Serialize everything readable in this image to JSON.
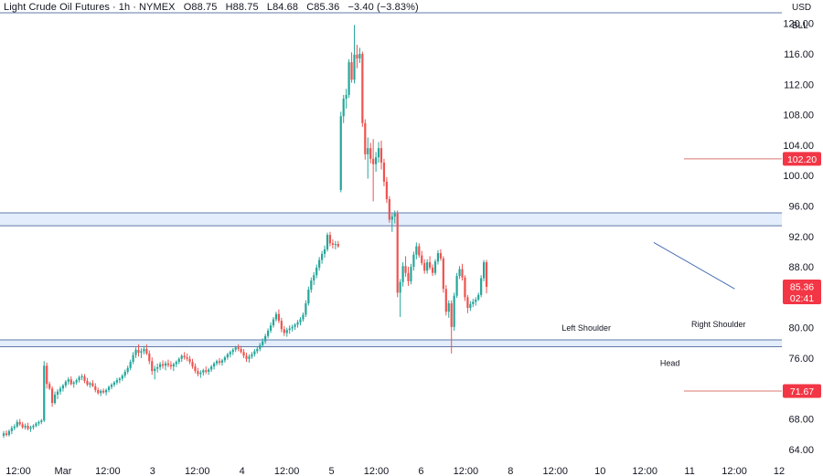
{
  "header": {
    "symbol_name": "Light Crude Oil Futures",
    "interval": "1h",
    "exchange": "NYMEX",
    "open": "O88.75",
    "high": "H88.75",
    "low": "L84.68",
    "close": "C85.36",
    "change": "−3.40 (−3.83%)"
  },
  "scale_units": {
    "currency": "USD",
    "unit": "BLL"
  },
  "colors": {
    "up": "#26a69a",
    "down": "#ef5350",
    "zone_fill": "#e3edfb",
    "zone_line": "#5f7aa8",
    "level_line": "#d9776f",
    "tag_red": "#f23645",
    "trend_line": "#4a6fb3"
  },
  "chart_data": {
    "type": "candlestick",
    "y_axis": {
      "range": [
        62.3,
        121.4
      ],
      "tick_labels": [
        "120.00",
        "116.00",
        "112.00",
        "108.00",
        "104.00",
        "100.00",
        "96.00",
        "92.00",
        "88.00",
        "84.00",
        "80.00",
        "76.00",
        "72.00",
        "68.00",
        "64.00"
      ],
      "tick_values": [
        120,
        116,
        112,
        108,
        104,
        100,
        96,
        92,
        88,
        84,
        80,
        76,
        72,
        68,
        64
      ]
    },
    "x_axis": {
      "tick_labels": [
        "12:00",
        "Mar",
        "12:00",
        "3",
        "12:00",
        "4",
        "12:00",
        "5",
        "12:00",
        "6",
        "12:00",
        "8",
        "12:00",
        "10",
        "12:00",
        "11",
        "12:00",
        "12"
      ]
    },
    "zones": [
      {
        "name": "resistance-zone",
        "low": 93.4,
        "high": 95.1
      },
      {
        "name": "support-zone",
        "low": 77.5,
        "high": 78.4
      }
    ],
    "top_line": 121.4,
    "levels": [
      {
        "value": 102.2,
        "label": "102.20"
      },
      {
        "value": 71.67,
        "label": "71.67"
      }
    ],
    "current_price": {
      "value": 85.36,
      "label": "85.36",
      "countdown": "02:41"
    },
    "trendline": {
      "from": {
        "index": 241,
        "price": 91.2
      },
      "to": {
        "index": 271,
        "price": 85.1
      }
    },
    "annotations": [
      {
        "text": "Left Shoulder",
        "index": 216,
        "price": 79.6
      },
      {
        "text": "Head",
        "index": 247,
        "price": 75.0
      },
      {
        "text": "Right Shoulder",
        "index": 265,
        "price": 80.1
      }
    ],
    "candles": {
      "fields": [
        "open",
        "high",
        "low",
        "close"
      ],
      "values": [
        [
          65.8,
          66.4,
          65.5,
          66.1
        ],
        [
          66.1,
          66.5,
          65.7,
          65.9
        ],
        [
          65.9,
          66.6,
          65.7,
          66.4
        ],
        [
          66.4,
          67.1,
          66.0,
          66.8
        ],
        [
          66.8,
          67.3,
          66.5,
          67.0
        ],
        [
          67.0,
          67.9,
          66.8,
          67.6
        ],
        [
          67.6,
          68.0,
          67.1,
          67.3
        ],
        [
          67.3,
          67.6,
          66.7,
          66.9
        ],
        [
          66.9,
          67.4,
          66.6,
          67.1
        ],
        [
          67.1,
          67.5,
          66.5,
          66.7
        ],
        [
          66.7,
          67.1,
          66.3,
          66.9
        ],
        [
          66.9,
          67.3,
          66.6,
          67.1
        ],
        [
          67.1,
          67.6,
          66.9,
          67.4
        ],
        [
          67.4,
          67.8,
          67.1,
          67.6
        ],
        [
          67.6,
          68.0,
          67.3,
          67.8
        ],
        [
          67.8,
          75.6,
          67.6,
          75.0
        ],
        [
          75.0,
          75.4,
          72.0,
          72.6
        ],
        [
          72.6,
          72.9,
          71.8,
          72.0
        ],
        [
          72.0,
          72.3,
          69.6,
          70.1
        ],
        [
          70.1,
          71.6,
          69.9,
          71.2
        ],
        [
          71.2,
          71.9,
          70.6,
          71.6
        ],
        [
          71.6,
          72.3,
          71.2,
          72.0
        ],
        [
          72.0,
          72.6,
          71.6,
          72.4
        ],
        [
          72.4,
          73.1,
          72.1,
          72.9
        ],
        [
          72.9,
          73.5,
          72.5,
          73.2
        ],
        [
          73.2,
          73.6,
          72.4,
          72.6
        ],
        [
          72.6,
          73.0,
          72.1,
          72.8
        ],
        [
          72.8,
          73.3,
          72.5,
          73.1
        ],
        [
          73.1,
          73.7,
          72.8,
          73.5
        ],
        [
          73.5,
          73.9,
          73.1,
          73.6
        ],
        [
          73.6,
          73.9,
          72.7,
          73.0
        ],
        [
          73.0,
          73.4,
          72.3,
          72.5
        ],
        [
          72.5,
          72.9,
          72.1,
          72.7
        ],
        [
          72.7,
          73.1,
          72.2,
          72.3
        ],
        [
          72.3,
          72.7,
          71.5,
          71.8
        ],
        [
          71.8,
          72.1,
          71.2,
          71.4
        ],
        [
          71.4,
          71.9,
          71.0,
          71.7
        ],
        [
          71.7,
          72.0,
          71.3,
          71.5
        ],
        [
          71.5,
          72.0,
          71.1,
          71.8
        ],
        [
          71.8,
          72.4,
          71.5,
          72.2
        ],
        [
          72.2,
          72.7,
          71.9,
          72.5
        ],
        [
          72.5,
          73.0,
          72.2,
          72.8
        ],
        [
          72.8,
          73.4,
          72.5,
          73.1
        ],
        [
          73.1,
          73.5,
          72.7,
          73.3
        ],
        [
          73.3,
          73.9,
          73.0,
          73.7
        ],
        [
          73.7,
          74.5,
          73.4,
          74.2
        ],
        [
          74.2,
          75.0,
          73.9,
          74.7
        ],
        [
          74.7,
          75.8,
          74.4,
          75.5
        ],
        [
          75.5,
          76.8,
          75.2,
          76.4
        ],
        [
          76.4,
          77.4,
          76.0,
          77.1
        ],
        [
          77.1,
          77.8,
          76.2,
          76.7
        ],
        [
          76.7,
          77.3,
          76.0,
          76.9
        ],
        [
          76.9,
          77.6,
          76.5,
          77.2
        ],
        [
          77.2,
          77.8,
          76.4,
          76.6
        ],
        [
          76.6,
          77.0,
          75.2,
          75.6
        ],
        [
          75.6,
          76.1,
          73.8,
          74.3
        ],
        [
          74.3,
          75.0,
          73.2,
          74.6
        ],
        [
          74.6,
          75.3,
          74.1,
          74.8
        ],
        [
          74.8,
          75.5,
          74.4,
          75.2
        ],
        [
          75.2,
          75.7,
          74.6,
          75.0
        ],
        [
          75.0,
          75.6,
          74.4,
          75.3
        ],
        [
          75.3,
          75.8,
          74.8,
          75.1
        ],
        [
          75.1,
          75.6,
          74.5,
          74.9
        ],
        [
          74.9,
          75.4,
          74.3,
          75.2
        ],
        [
          75.2,
          75.7,
          74.8,
          75.5
        ],
        [
          75.5,
          76.1,
          75.2,
          75.9
        ],
        [
          75.9,
          76.5,
          75.5,
          76.3
        ],
        [
          76.3,
          76.8,
          75.8,
          76.1
        ],
        [
          76.1,
          76.6,
          75.6,
          75.9
        ],
        [
          75.9,
          76.3,
          75.2,
          75.5
        ],
        [
          75.5,
          75.9,
          74.6,
          74.9
        ],
        [
          74.9,
          75.3,
          74.0,
          74.3
        ],
        [
          74.3,
          74.7,
          73.6,
          73.9
        ],
        [
          73.9,
          74.4,
          73.4,
          74.1
        ],
        [
          74.1,
          74.6,
          73.7,
          74.4
        ],
        [
          74.4,
          74.9,
          73.9,
          74.2
        ],
        [
          74.2,
          74.7,
          73.8,
          74.5
        ],
        [
          74.5,
          75.1,
          74.2,
          74.9
        ],
        [
          74.9,
          75.5,
          74.5,
          75.3
        ],
        [
          75.3,
          75.8,
          75.0,
          75.6
        ],
        [
          75.6,
          76.0,
          75.1,
          75.4
        ],
        [
          75.4,
          75.9,
          75.0,
          75.7
        ],
        [
          75.7,
          76.3,
          75.4,
          76.1
        ],
        [
          76.1,
          76.7,
          75.8,
          76.5
        ],
        [
          76.5,
          77.0,
          76.1,
          76.8
        ],
        [
          76.8,
          77.3,
          76.4,
          77.1
        ],
        [
          77.1,
          77.6,
          76.8,
          77.4
        ],
        [
          77.4,
          77.8,
          76.9,
          77.2
        ],
        [
          77.2,
          77.6,
          76.6,
          76.8
        ],
        [
          76.8,
          77.2,
          76.0,
          76.3
        ],
        [
          76.3,
          76.7,
          75.5,
          75.9
        ],
        [
          75.9,
          76.5,
          75.4,
          76.2
        ],
        [
          76.2,
          76.8,
          75.9,
          76.5
        ],
        [
          76.5,
          77.2,
          76.2,
          76.9
        ],
        [
          76.9,
          77.5,
          76.6,
          77.2
        ],
        [
          77.2,
          78.0,
          76.9,
          77.7
        ],
        [
          77.7,
          78.6,
          77.4,
          78.2
        ],
        [
          78.2,
          79.2,
          77.9,
          78.9
        ],
        [
          78.9,
          79.9,
          78.6,
          79.6
        ],
        [
          79.6,
          80.7,
          79.3,
          80.3
        ],
        [
          80.3,
          81.4,
          80.0,
          81.1
        ],
        [
          81.1,
          82.1,
          80.8,
          81.8
        ],
        [
          81.8,
          82.4,
          80.6,
          80.9
        ],
        [
          80.9,
          81.3,
          79.4,
          79.8
        ],
        [
          79.8,
          80.2,
          78.9,
          79.3
        ],
        [
          79.3,
          80.0,
          78.8,
          79.7
        ],
        [
          79.7,
          80.3,
          79.2,
          79.9
        ],
        [
          79.9,
          80.4,
          79.5,
          80.1
        ],
        [
          80.1,
          80.6,
          79.7,
          80.4
        ],
        [
          80.4,
          81.0,
          80.0,
          80.7
        ],
        [
          80.7,
          81.4,
          80.3,
          81.1
        ],
        [
          81.1,
          82.0,
          80.8,
          81.7
        ],
        [
          81.7,
          83.6,
          81.4,
          83.2
        ],
        [
          83.2,
          85.4,
          82.9,
          85.0
        ],
        [
          85.0,
          86.6,
          84.6,
          86.2
        ],
        [
          86.2,
          87.3,
          85.6,
          86.9
        ],
        [
          86.9,
          88.3,
          86.5,
          87.9
        ],
        [
          87.9,
          89.3,
          87.5,
          88.9
        ],
        [
          88.9,
          90.1,
          88.4,
          89.7
        ],
        [
          89.7,
          90.8,
          89.2,
          90.3
        ],
        [
          90.3,
          92.5,
          90.0,
          92.2
        ],
        [
          92.2,
          92.6,
          90.7,
          91.1
        ],
        [
          91.1,
          91.6,
          90.4,
          90.9
        ],
        [
          90.9,
          91.4,
          90.3,
          91.0
        ],
        [
          91.0,
          91.4,
          90.5,
          90.7
        ],
        [
          98.1,
          108.4,
          97.8,
          107.8
        ],
        [
          107.8,
          110.6,
          106.9,
          110.1
        ],
        [
          110.1,
          111.4,
          108.8,
          110.6
        ],
        [
          110.6,
          115.3,
          110.2,
          114.9
        ],
        [
          114.9,
          116.2,
          112.2,
          112.6
        ],
        [
          112.6,
          119.8,
          112.1,
          115.9
        ],
        [
          115.9,
          117.2,
          114.1,
          115.4
        ],
        [
          115.4,
          116.8,
          114.8,
          116.0
        ],
        [
          116.0,
          116.3,
          106.4,
          106.9
        ],
        [
          106.9,
          107.4,
          102.1,
          102.8
        ],
        [
          102.8,
          105.0,
          99.6,
          103.6
        ],
        [
          103.6,
          104.3,
          101.6,
          102.2
        ],
        [
          102.2,
          104.8,
          96.6,
          101.5
        ],
        [
          101.5,
          103.1,
          100.5,
          102.4
        ],
        [
          102.4,
          104.4,
          101.7,
          103.6
        ],
        [
          103.6,
          104.6,
          100.8,
          101.7
        ],
        [
          101.7,
          102.2,
          98.6,
          99.2
        ],
        [
          99.2,
          99.8,
          96.4,
          96.9
        ],
        [
          96.9,
          97.3,
          93.8,
          94.2
        ],
        [
          94.2,
          95.0,
          92.6,
          94.6
        ],
        [
          94.6,
          95.4,
          93.7,
          95.0
        ],
        [
          95.0,
          95.4,
          84.0,
          84.6
        ],
        [
          84.6,
          86.4,
          81.4,
          86.0
        ],
        [
          86.0,
          88.6,
          85.4,
          88.1
        ],
        [
          88.1,
          89.4,
          86.7,
          87.2
        ],
        [
          87.2,
          88.0,
          85.5,
          86.1
        ],
        [
          86.1,
          88.4,
          85.7,
          88.0
        ],
        [
          88.0,
          90.0,
          87.5,
          89.6
        ],
        [
          89.6,
          91.2,
          89.0,
          90.7
        ],
        [
          90.7,
          91.1,
          89.2,
          89.5
        ],
        [
          89.5,
          90.1,
          88.2,
          88.5
        ],
        [
          88.5,
          89.0,
          87.1,
          87.5
        ],
        [
          87.5,
          89.0,
          87.1,
          88.6
        ],
        [
          88.6,
          89.4,
          87.6,
          87.9
        ],
        [
          87.9,
          88.3,
          86.8,
          87.2
        ],
        [
          87.2,
          89.0,
          86.9,
          88.7
        ],
        [
          88.7,
          90.2,
          88.3,
          89.8
        ],
        [
          89.8,
          90.3,
          88.8,
          89.1
        ],
        [
          89.1,
          89.4,
          84.6,
          85.1
        ],
        [
          85.1,
          85.6,
          81.6,
          82.1
        ],
        [
          82.1,
          83.6,
          81.3,
          83.2
        ],
        [
          83.2,
          83.6,
          76.6,
          80.1
        ],
        [
          80.1,
          84.6,
          79.6,
          84.2
        ],
        [
          84.2,
          87.2,
          83.9,
          86.8
        ],
        [
          86.8,
          88.1,
          86.4,
          87.7
        ],
        [
          87.7,
          88.4,
          86.2,
          86.6
        ],
        [
          86.6,
          86.9,
          83.5,
          84.0
        ],
        [
          84.0,
          84.3,
          81.9,
          82.6
        ],
        [
          82.6,
          83.5,
          82.2,
          83.1
        ],
        [
          83.1,
          83.8,
          82.7,
          83.4
        ],
        [
          83.4,
          84.0,
          82.9,
          83.7
        ],
        [
          83.7,
          84.6,
          83.5,
          84.3
        ],
        [
          84.3,
          86.9,
          84.0,
          86.5
        ],
        [
          86.5,
          88.9,
          86.1,
          88.6
        ],
        [
          88.6,
          88.9,
          84.5,
          85.36
        ]
      ]
    }
  }
}
